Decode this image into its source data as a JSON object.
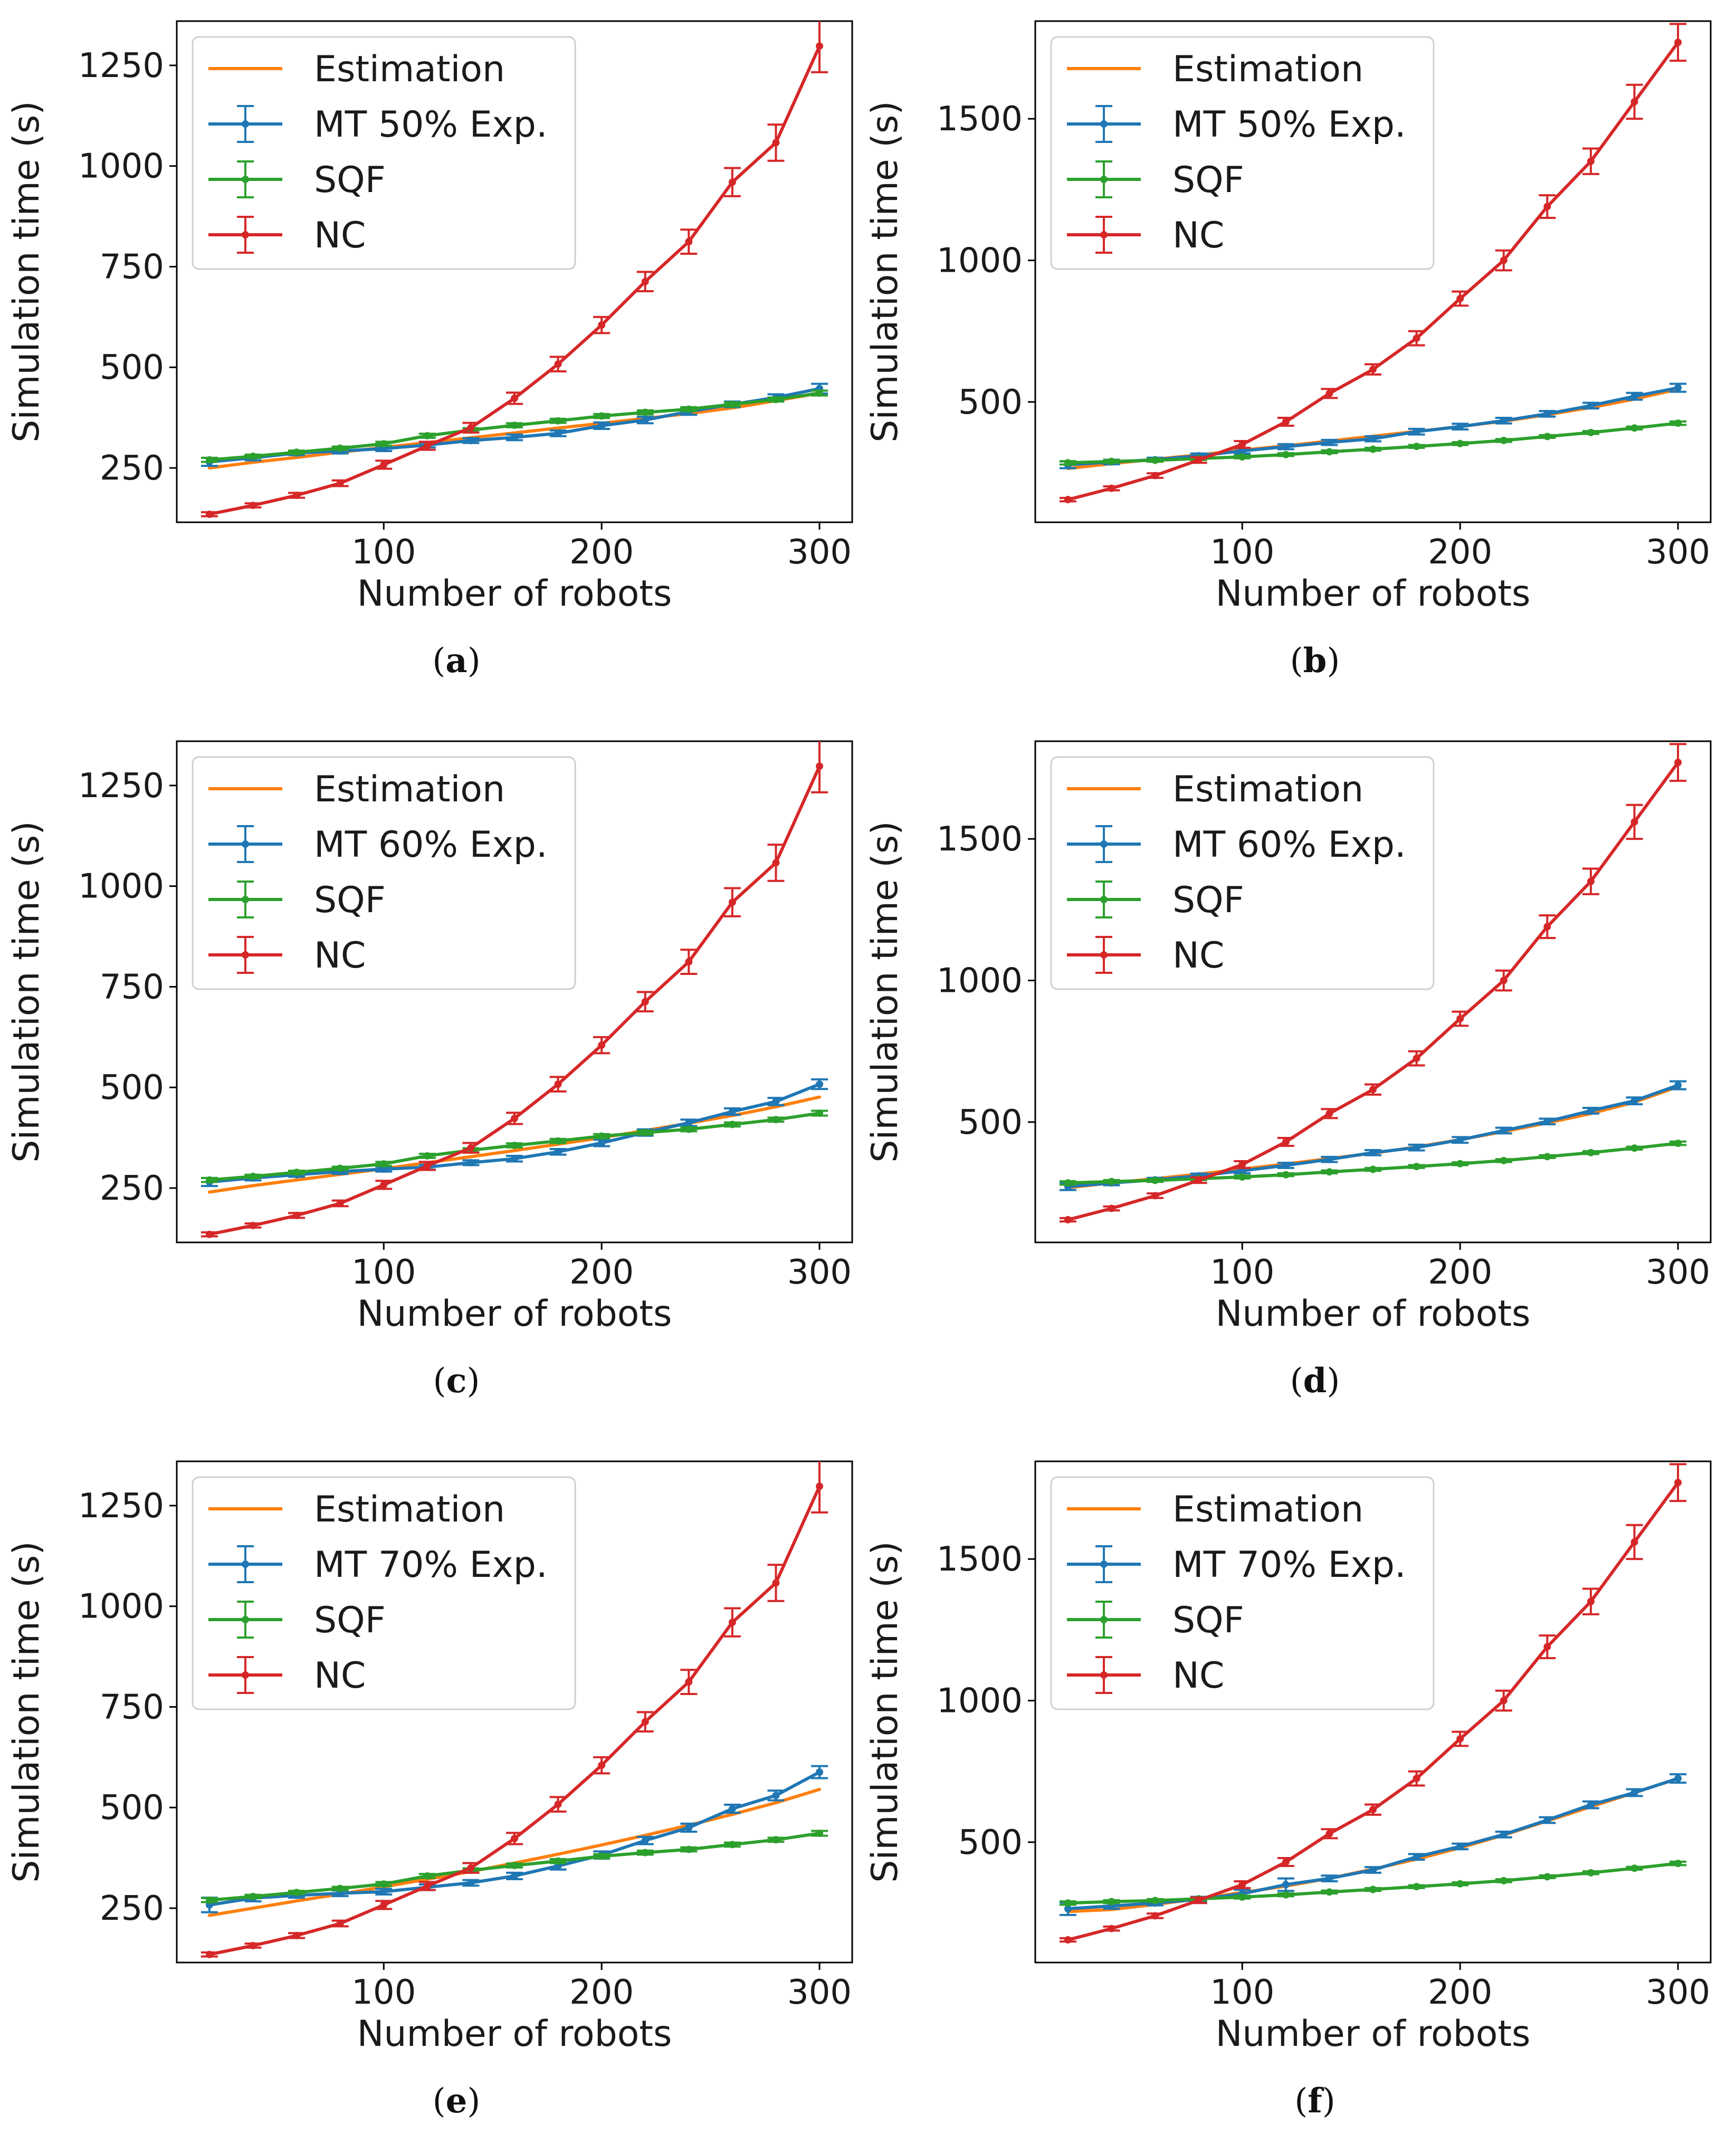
{
  "chart_data": [
    {
      "id": "a",
      "type": "line",
      "caption": "a",
      "xlabel": "Number of robots",
      "ylabel": "Simulation time (s)",
      "xlim": [
        5,
        315
      ],
      "ylim": [
        115,
        1360
      ],
      "xticks": [
        100,
        200,
        300
      ],
      "yticks": [
        250,
        500,
        750,
        1000,
        1250
      ],
      "x": [
        20,
        40,
        60,
        80,
        100,
        120,
        140,
        160,
        180,
        200,
        220,
        240,
        260,
        280,
        300
      ],
      "series": [
        {
          "name": "Estimation",
          "color": "#ff7f0e",
          "errorbars": false,
          "markers": false,
          "values": [
            250,
            264,
            276,
            289,
            301,
            313,
            325,
            337,
            349,
            361,
            373,
            385,
            399,
            417,
            436
          ]
        },
        {
          "name": "MT 50% Exp.",
          "color": "#1f77b4",
          "errorbars": true,
          "markers": true,
          "values": [
            265,
            275,
            287,
            292,
            298,
            307,
            318,
            326,
            336,
            355,
            369,
            390,
            408,
            425,
            447
          ],
          "errors": [
            10,
            6,
            5,
            6,
            6,
            6,
            6,
            7,
            7,
            8,
            8,
            8,
            7,
            8,
            12
          ]
        },
        {
          "name": "SQF",
          "color": "#2ca02c",
          "errorbars": true,
          "markers": true,
          "values": [
            270,
            279,
            289,
            299,
            310,
            330,
            344,
            356,
            367,
            379,
            388,
            396,
            408,
            420,
            436
          ],
          "errors": [
            5,
            4,
            4,
            4,
            5,
            5,
            5,
            5,
            5,
            5,
            5,
            5,
            5,
            5,
            6
          ]
        },
        {
          "name": "NC",
          "color": "#d62728",
          "errorbars": true,
          "markers": true,
          "values": [
            135,
            157,
            182,
            212,
            258,
            305,
            350,
            423,
            508,
            605,
            713,
            812,
            960,
            1058,
            1298
          ],
          "errors": [
            5,
            5,
            6,
            7,
            10,
            10,
            12,
            14,
            18,
            20,
            24,
            30,
            35,
            45,
            65
          ]
        }
      ]
    },
    {
      "id": "b",
      "type": "line",
      "caption": "b",
      "xlabel": "Number of robots",
      "ylabel": "Simulation time (s)",
      "xlim": [
        5,
        315
      ],
      "ylim": [
        75,
        1845
      ],
      "xticks": [
        100,
        200,
        300
      ],
      "yticks": [
        500,
        1000,
        1500
      ],
      "x": [
        20,
        40,
        60,
        80,
        100,
        120,
        140,
        160,
        180,
        200,
        220,
        240,
        260,
        280,
        300
      ],
      "series": [
        {
          "name": "Estimation",
          "color": "#ff7f0e",
          "errorbars": false,
          "markers": false,
          "values": [
            265,
            282,
            298,
            313,
            330,
            345,
            362,
            379,
            396,
            413,
            432,
            455,
            480,
            510,
            545
          ]
        },
        {
          "name": "MT 50% Exp.",
          "color": "#1f77b4",
          "errorbars": true,
          "markers": true,
          "values": [
            278,
            288,
            296,
            310,
            327,
            342,
            357,
            370,
            395,
            413,
            434,
            458,
            487,
            520,
            550
          ],
          "errors": [
            12,
            8,
            7,
            8,
            9,
            9,
            9,
            9,
            10,
            10,
            10,
            10,
            10,
            12,
            14
          ]
        },
        {
          "name": "SQF",
          "color": "#2ca02c",
          "errorbars": true,
          "markers": true,
          "values": [
            285,
            290,
            294,
            300,
            306,
            314,
            324,
            333,
            343,
            353,
            364,
            378,
            392,
            408,
            425
          ],
          "errors": [
            6,
            5,
            5,
            5,
            5,
            5,
            5,
            5,
            5,
            5,
            5,
            5,
            5,
            5,
            6
          ]
        },
        {
          "name": "NC",
          "color": "#d62728",
          "errorbars": true,
          "markers": true,
          "values": [
            155,
            195,
            240,
            295,
            350,
            430,
            530,
            615,
            725,
            865,
            1000,
            1190,
            1350,
            1560,
            1770
          ],
          "errors": [
            6,
            7,
            8,
            10,
            12,
            14,
            16,
            18,
            25,
            25,
            35,
            40,
            45,
            60,
            65
          ]
        }
      ]
    },
    {
      "id": "c",
      "type": "line",
      "caption": "c",
      "xlabel": "Number of robots",
      "ylabel": "Simulation time (s)",
      "xlim": [
        5,
        315
      ],
      "ylim": [
        115,
        1360
      ],
      "xticks": [
        100,
        200,
        300
      ],
      "yticks": [
        250,
        500,
        750,
        1000,
        1250
      ],
      "x": [
        20,
        40,
        60,
        80,
        100,
        120,
        140,
        160,
        180,
        200,
        220,
        240,
        260,
        280,
        300
      ],
      "series": [
        {
          "name": "Estimation",
          "color": "#ff7f0e",
          "errorbars": false,
          "markers": false,
          "values": [
            240,
            256,
            270,
            284,
            298,
            313,
            328,
            343,
            359,
            375,
            393,
            411,
            430,
            452,
            476
          ]
        },
        {
          "name": "MT 60% Exp.",
          "color": "#1f77b4",
          "errorbars": true,
          "markers": true,
          "values": [
            265,
            275,
            283,
            291,
            297,
            302,
            313,
            323,
            340,
            362,
            388,
            412,
            440,
            465,
            508
          ],
          "errors": [
            10,
            6,
            5,
            6,
            6,
            6,
            6,
            7,
            7,
            8,
            8,
            8,
            8,
            9,
            12
          ]
        },
        {
          "name": "SQF",
          "color": "#2ca02c",
          "errorbars": true,
          "markers": true,
          "values": [
            270,
            279,
            289,
            299,
            310,
            330,
            344,
            356,
            367,
            379,
            388,
            396,
            408,
            420,
            436
          ],
          "errors": [
            5,
            4,
            4,
            4,
            5,
            5,
            5,
            5,
            5,
            5,
            5,
            5,
            5,
            5,
            6
          ]
        },
        {
          "name": "NC",
          "color": "#d62728",
          "errorbars": true,
          "markers": true,
          "values": [
            135,
            157,
            182,
            212,
            258,
            305,
            350,
            423,
            508,
            605,
            713,
            812,
            960,
            1058,
            1298
          ],
          "errors": [
            5,
            5,
            6,
            7,
            10,
            10,
            12,
            14,
            18,
            20,
            24,
            30,
            35,
            45,
            65
          ]
        }
      ]
    },
    {
      "id": "d",
      "type": "line",
      "caption": "d",
      "xlabel": "Number of robots",
      "ylabel": "Simulation time (s)",
      "xlim": [
        5,
        315
      ],
      "ylim": [
        75,
        1845
      ],
      "xticks": [
        100,
        200,
        300
      ],
      "yticks": [
        500,
        1000,
        1500
      ],
      "x": [
        20,
        40,
        60,
        80,
        100,
        120,
        140,
        160,
        180,
        200,
        220,
        240,
        260,
        280,
        300
      ],
      "series": [
        {
          "name": "Estimation",
          "color": "#ff7f0e",
          "errorbars": false,
          "markers": false,
          "values": [
            268,
            285,
            300,
            316,
            334,
            352,
            371,
            390,
            412,
            438,
            466,
            497,
            530,
            570,
            625
          ]
        },
        {
          "name": "MT 60% Exp.",
          "color": "#1f77b4",
          "errorbars": true,
          "markers": true,
          "values": [
            272,
            285,
            296,
            310,
            328,
            347,
            368,
            392,
            410,
            437,
            470,
            502,
            540,
            575,
            630
          ],
          "errors": [
            12,
            8,
            7,
            8,
            9,
            9,
            9,
            9,
            10,
            10,
            10,
            10,
            10,
            12,
            14
          ]
        },
        {
          "name": "SQF",
          "color": "#2ca02c",
          "errorbars": true,
          "markers": true,
          "values": [
            285,
            290,
            294,
            300,
            306,
            314,
            324,
            333,
            343,
            353,
            364,
            378,
            392,
            408,
            425
          ],
          "errors": [
            6,
            5,
            5,
            5,
            5,
            5,
            5,
            5,
            5,
            5,
            5,
            5,
            5,
            5,
            6
          ]
        },
        {
          "name": "NC",
          "color": "#d62728",
          "errorbars": true,
          "markers": true,
          "values": [
            155,
            195,
            240,
            295,
            350,
            430,
            530,
            615,
            725,
            865,
            1000,
            1190,
            1350,
            1560,
            1770
          ],
          "errors": [
            6,
            7,
            8,
            10,
            12,
            14,
            16,
            18,
            25,
            25,
            35,
            40,
            45,
            60,
            65
          ]
        }
      ]
    },
    {
      "id": "e",
      "type": "line",
      "caption": "e",
      "xlabel": "Number of robots",
      "ylabel": "Simulation time (s)",
      "xlim": [
        5,
        315
      ],
      "ylim": [
        115,
        1360
      ],
      "xticks": [
        100,
        200,
        300
      ],
      "yticks": [
        250,
        500,
        750,
        1000,
        1250
      ],
      "x": [
        20,
        40,
        60,
        80,
        100,
        120,
        140,
        160,
        180,
        200,
        220,
        240,
        260,
        280,
        300
      ],
      "series": [
        {
          "name": "Estimation",
          "color": "#ff7f0e",
          "errorbars": false,
          "markers": false,
          "values": [
            232,
            250,
            268,
            285,
            303,
            322,
            341,
            362,
            384,
            407,
            431,
            456,
            483,
            512,
            545
          ]
        },
        {
          "name": "MT 70% Exp.",
          "color": "#1f77b4",
          "errorbars": true,
          "markers": true,
          "values": [
            258,
            275,
            282,
            287,
            291,
            302,
            313,
            330,
            355,
            382,
            418,
            450,
            497,
            530,
            588
          ],
          "errors": [
            18,
            8,
            6,
            7,
            7,
            7,
            7,
            8,
            9,
            9,
            9,
            10,
            10,
            12,
            15
          ]
        },
        {
          "name": "SQF",
          "color": "#2ca02c",
          "errorbars": true,
          "markers": true,
          "values": [
            270,
            279,
            289,
            299,
            310,
            330,
            344,
            356,
            367,
            379,
            388,
            396,
            408,
            420,
            436
          ],
          "errors": [
            5,
            4,
            4,
            4,
            5,
            5,
            5,
            5,
            5,
            5,
            5,
            5,
            5,
            5,
            6
          ]
        },
        {
          "name": "NC",
          "color": "#d62728",
          "errorbars": true,
          "markers": true,
          "values": [
            135,
            157,
            182,
            212,
            258,
            305,
            350,
            423,
            508,
            605,
            713,
            812,
            960,
            1058,
            1298
          ],
          "errors": [
            5,
            5,
            6,
            7,
            10,
            10,
            12,
            14,
            18,
            20,
            24,
            30,
            35,
            45,
            65
          ]
        }
      ]
    },
    {
      "id": "f",
      "type": "line",
      "caption": "f",
      "xlabel": "Number of robots",
      "ylabel": "Simulation time (s)",
      "xlim": [
        5,
        315
      ],
      "ylim": [
        75,
        1845
      ],
      "xticks": [
        100,
        200,
        300
      ],
      "yticks": [
        500,
        1000,
        1500
      ],
      "x": [
        20,
        40,
        60,
        80,
        100,
        120,
        140,
        160,
        180,
        200,
        220,
        240,
        260,
        280,
        300
      ],
      "series": [
        {
          "name": "Estimation",
          "color": "#ff7f0e",
          "errorbars": false,
          "markers": false,
          "values": [
            255,
            262,
            280,
            300,
            322,
            345,
            372,
            405,
            440,
            480,
            525,
            575,
            625,
            675,
            725
          ]
        },
        {
          "name": "MT 70% Exp.",
          "color": "#1f77b4",
          "errorbars": true,
          "markers": true,
          "values": [
            265,
            275,
            285,
            298,
            318,
            350,
            372,
            402,
            448,
            485,
            527,
            578,
            632,
            675,
            725
          ],
          "errors": [
            22,
            10,
            8,
            9,
            14,
            22,
            10,
            10,
            10,
            10,
            10,
            10,
            12,
            12,
            15
          ]
        },
        {
          "name": "SQF",
          "color": "#2ca02c",
          "errorbars": true,
          "markers": true,
          "values": [
            285,
            290,
            294,
            300,
            306,
            314,
            324,
            333,
            343,
            353,
            364,
            378,
            392,
            408,
            425
          ],
          "errors": [
            6,
            5,
            5,
            5,
            5,
            5,
            5,
            5,
            5,
            5,
            5,
            5,
            5,
            5,
            6
          ]
        },
        {
          "name": "NC",
          "color": "#d62728",
          "errorbars": true,
          "markers": true,
          "values": [
            155,
            195,
            240,
            295,
            350,
            430,
            530,
            615,
            725,
            865,
            1000,
            1190,
            1350,
            1560,
            1770
          ],
          "errors": [
            6,
            7,
            8,
            10,
            12,
            14,
            16,
            18,
            25,
            25,
            35,
            40,
            45,
            60,
            65
          ]
        }
      ]
    }
  ]
}
